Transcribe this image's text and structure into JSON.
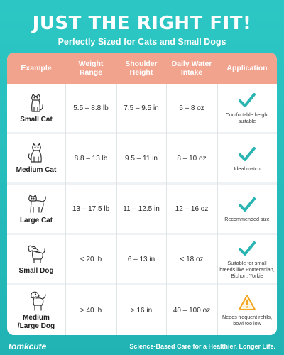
{
  "title": "JUST THE RIGHT FIT!",
  "subtitle": "Perfectly Sized for Cats and Small Dogs",
  "colors": {
    "background": "#2cc7c4",
    "header": "#f2a38d",
    "check": "#2bb5b2",
    "warning": "#f5a623"
  },
  "table": {
    "headers": [
      "Example",
      "Weight\nRange",
      "Shoulder\nHeight",
      "Daily Water\nIntake",
      "Application"
    ],
    "rows": [
      {
        "example": "Small Cat",
        "icon": "small-cat-icon",
        "weight": "5.5 – 8.8 lb",
        "height": "7.5 – 9.5 in",
        "water": "5 – 8 oz",
        "status_icon": "check-icon",
        "application": "Comfortable height\nsuitable"
      },
      {
        "example": "Medium Cat",
        "icon": "medium-cat-icon",
        "weight": "8.8 – 13 lb",
        "height": "9.5 – 11 in",
        "water": "8 – 10 oz",
        "status_icon": "check-icon",
        "application": "Ideal match"
      },
      {
        "example": "Large Cat",
        "icon": "large-cat-icon",
        "weight": "13 – 17.5 lb",
        "height": "11 – 12.5 in",
        "water": "12 – 16 oz",
        "status_icon": "check-icon",
        "application": "Recommended size"
      },
      {
        "example": "Small Dog",
        "icon": "small-dog-icon",
        "weight": "< 20 lb",
        "height": "6 – 13 in",
        "water": "< 18 oz",
        "status_icon": "check-icon",
        "application": "Suitable for small\nbreeds like Pomeranian,\nBichon, Yorkie"
      },
      {
        "example": "Medium\n/Large Dog",
        "icon": "large-dog-icon",
        "weight": "> 40 lb",
        "height": "> 16 in",
        "water": "40 – 100 oz",
        "status_icon": "warning-icon",
        "application": "Needs frequent refills,\nbowl too low"
      }
    ]
  },
  "footer": {
    "brand": "tomkcute",
    "slogan": "Science-Based Care for a Healthier, Longer Life."
  }
}
